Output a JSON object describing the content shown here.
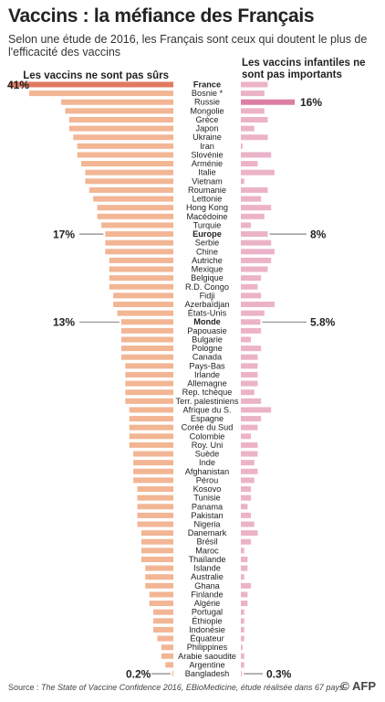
{
  "title": "Vaccins : la méfiance des Français",
  "subtitle": "Selon une étude de 2016, les Français sont ceux qui doutent le plus de l'efficacité des vaccins",
  "source_label": "Source :",
  "source_text": "The State of Vaccine Confidence 2016, EBioMedicine, étude réalisée dans 67 pays",
  "logo": "© AFP",
  "colors": {
    "unsafe": "#f2b694",
    "unsafe_highlight": "#e07a5f",
    "unimportant": "#ecb3c8",
    "unimportant_highlight": "#dd7fa3"
  },
  "chart_data": {
    "type": "bar",
    "layout": "butterfly",
    "categories": [
      "France",
      "Bosnie *",
      "Russie",
      "Mongolie",
      "Grèce",
      "Japon",
      "Ukraine",
      "Iran",
      "Slovénie",
      "Arménie",
      "Italie",
      "Vietnam",
      "Roumanie",
      "Lettonie",
      "Hong Kong",
      "Macédoine",
      "Turquie",
      "Europe",
      "Serbie",
      "Chine",
      "Autriche",
      "Mexique",
      "Belgique",
      "R.D. Congo",
      "Fidji",
      "Azerbaïdjan",
      "États-Unis",
      "Monde",
      "Papouasie",
      "Bulgarie",
      "Pologne",
      "Canada",
      "Pays-Bas",
      "Irlande",
      "Allemagne",
      "Rep. tchèque",
      "Terr. palestiniens",
      "Afrique du S.",
      "Espagne",
      "Corée du Sud",
      "Colombie",
      "Roy. Uni",
      "Suède",
      "Inde",
      "Afghanistan",
      "Pérou",
      "Kosovo",
      "Tunisie",
      "Panama",
      "Pakistan",
      "Nigeria",
      "Danemark",
      "Brésil",
      "Maroc",
      "Thaïlande",
      "Islande",
      "Australie",
      "Ghana",
      "Finlande",
      "Algérie",
      "Portugal",
      "Éthiopie",
      "Indonésie",
      "Équateur",
      "Philippines",
      "Arabie saoudite",
      "Argentine",
      "Bangladesh"
    ],
    "bold_categories": [
      "France",
      "Europe",
      "Monde"
    ],
    "series": [
      {
        "name": "Les vaccins ne sont pas sûrs",
        "values": [
          41,
          36,
          28,
          27,
          26,
          26,
          25,
          24,
          24,
          23,
          22,
          22,
          21,
          20,
          19,
          19,
          18,
          17,
          17,
          17,
          16,
          16,
          16,
          16,
          15,
          15,
          14,
          13,
          13,
          13,
          13,
          13,
          12,
          12,
          12,
          12,
          12,
          11,
          11,
          11,
          11,
          11,
          10,
          10,
          10,
          10,
          9,
          9,
          9,
          9,
          9,
          8,
          8,
          8,
          8,
          7,
          7,
          7,
          6,
          6,
          5,
          5,
          5,
          4,
          3,
          3,
          2,
          0.2
        ]
      },
      {
        "name": "Les vaccins infantiles ne sont pas importants",
        "values": [
          8,
          7,
          16,
          7,
          8,
          4,
          8,
          0.5,
          9,
          5,
          10,
          1,
          8,
          6,
          9,
          7,
          3,
          8,
          9,
          10,
          9,
          8,
          6,
          5,
          6,
          10,
          7,
          5.8,
          6,
          3,
          6,
          5,
          5,
          5,
          5,
          4,
          6,
          9,
          6,
          5,
          3,
          5,
          5,
          4,
          5,
          4,
          3,
          3,
          2,
          3,
          4,
          5,
          3,
          1,
          2,
          2,
          1,
          3,
          2,
          2,
          1,
          1,
          1,
          1,
          0.5,
          1,
          1,
          0.3
        ]
      }
    ],
    "annotations": [
      {
        "category": "France",
        "series": 0,
        "label": "41%"
      },
      {
        "category": "Europe",
        "series": 0,
        "label": "17%"
      },
      {
        "category": "Monde",
        "series": 0,
        "label": "13%"
      },
      {
        "category": "Bangladesh",
        "series": 0,
        "label": "0.2%"
      },
      {
        "category": "Russie",
        "series": 1,
        "label": "16%"
      },
      {
        "category": "Europe",
        "series": 1,
        "label": "8%"
      },
      {
        "category": "Monde",
        "series": 1,
        "label": "5.8%"
      },
      {
        "category": "Bangladesh",
        "series": 1,
        "label": "0.3%"
      }
    ],
    "highlight": [
      {
        "category": "France",
        "series": 0
      },
      {
        "category": "Russie",
        "series": 1
      }
    ]
  }
}
